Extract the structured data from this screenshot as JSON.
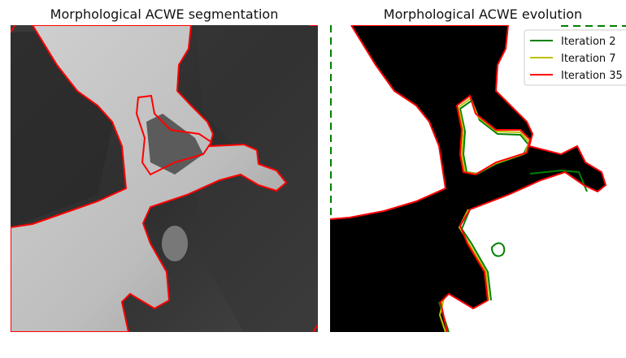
{
  "chart_data": [
    {
      "type": "image",
      "title": "Morphological ACWE segmentation",
      "overlay": {
        "type": "contour",
        "color": "#ff0000",
        "label": "final segmentation"
      },
      "background": "grayscale photograph of hands (fingers)",
      "axes": "off"
    },
    {
      "type": "image",
      "title": "Morphological ACWE evolution",
      "background": "binary mask (black/white)",
      "axes": "off",
      "series": [
        {
          "name": "Iteration 2",
          "color": "#008000"
        },
        {
          "name": "Iteration 7",
          "color": "#bfbf00"
        },
        {
          "name": "Iteration 35",
          "color": "#ff0000"
        }
      ],
      "legend_position": "top-right"
    }
  ],
  "colors": {
    "contour_final": "#ff0000",
    "iteration_2": "#008000",
    "iteration_7": "#bfbf00",
    "mask_foreground": "#000000",
    "mask_background": "#ffffff"
  }
}
